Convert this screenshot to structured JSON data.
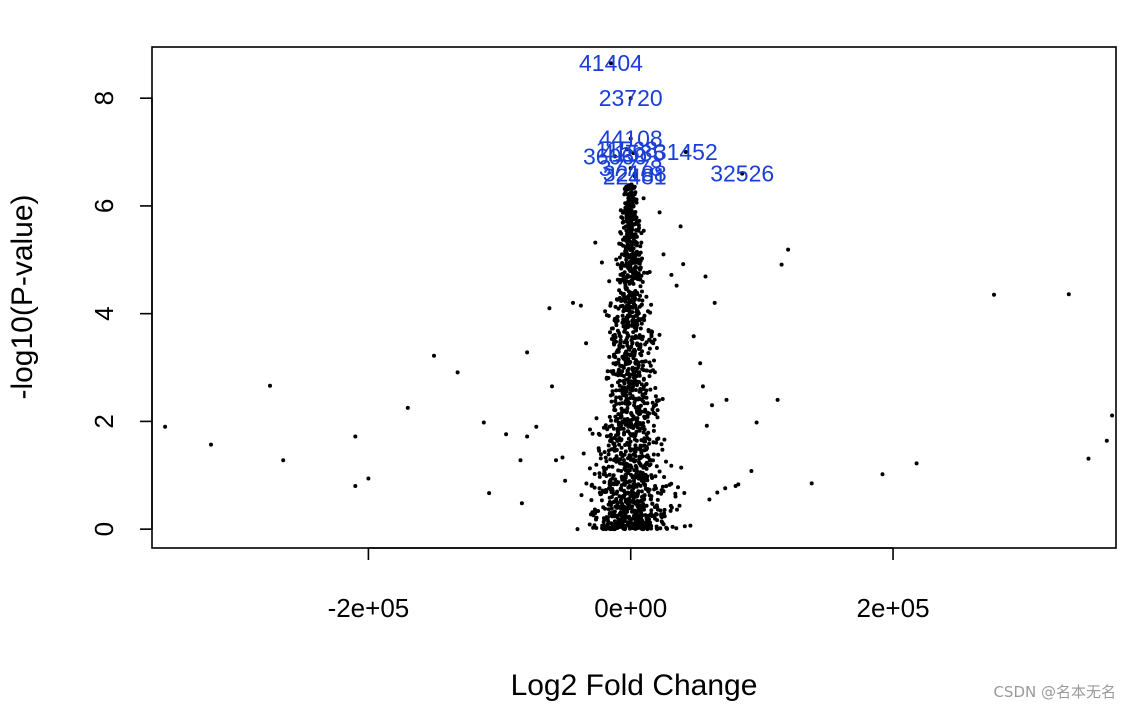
{
  "chart_data": {
    "type": "scatter",
    "title": "",
    "xlabel": "Log2 Fold Change",
    "ylabel": "-log10(P-value)",
    "xlim": [
      -365000,
      370000
    ],
    "ylim": [
      -0.35,
      8.95
    ],
    "x_ticks": [
      -200000,
      0,
      200000
    ],
    "x_tick_labels": [
      "-2e+05",
      "0e+00",
      "2e+05"
    ],
    "y_ticks": [
      0,
      2,
      4,
      6,
      8
    ],
    "y_tick_labels": [
      "0",
      "2",
      "4",
      "6",
      "8"
    ],
    "grid": false,
    "legend": "none",
    "colors": {
      "points": "#000000",
      "labels": "#1a3fd6"
    },
    "labeled_points": [
      {
        "label": "41404",
        "x": -15000,
        "y": 8.65
      },
      {
        "label": "23720",
        "x": 0,
        "y": 8.0
      },
      {
        "label": "44108",
        "x": 0,
        "y": 7.25
      },
      {
        "label": "31452",
        "x": 42000,
        "y": 7.0
      },
      {
        "label": "11568",
        "x": -3000,
        "y": 7.05
      },
      {
        "label": "41585",
        "x": 2000,
        "y": 6.98
      },
      {
        "label": "36060",
        "x": -12000,
        "y": 6.92
      },
      {
        "label": "37778",
        "x": 0,
        "y": 6.7
      },
      {
        "label": "32526",
        "x": 85000,
        "y": 6.6
      },
      {
        "label": "32188",
        "x": 3000,
        "y": 6.6
      },
      {
        "label": "22481",
        "x": 3000,
        "y": 6.55
      }
    ],
    "outlier_points": [
      {
        "x": -355000,
        "y": 1.9
      },
      {
        "x": -320000,
        "y": 1.57
      },
      {
        "x": -275000,
        "y": 2.66
      },
      {
        "x": -265000,
        "y": 1.28
      },
      {
        "x": -210000,
        "y": 1.72
      },
      {
        "x": -210000,
        "y": 0.8
      },
      {
        "x": -200000,
        "y": 0.94
      },
      {
        "x": -170000,
        "y": 2.25
      },
      {
        "x": -150000,
        "y": 3.22
      },
      {
        "x": -132000,
        "y": 2.91
      },
      {
        "x": -112000,
        "y": 1.98
      },
      {
        "x": -108000,
        "y": 0.67
      },
      {
        "x": -95000,
        "y": 1.76
      },
      {
        "x": -84000,
        "y": 1.28
      },
      {
        "x": -83000,
        "y": 0.48
      },
      {
        "x": -79000,
        "y": 1.72
      },
      {
        "x": -79000,
        "y": 3.28
      },
      {
        "x": -72000,
        "y": 1.9
      },
      {
        "x": -62000,
        "y": 4.1
      },
      {
        "x": -60000,
        "y": 2.65
      },
      {
        "x": -57000,
        "y": 1.28
      },
      {
        "x": -52000,
        "y": 1.33
      },
      {
        "x": -50000,
        "y": 0.9
      },
      {
        "x": -44000,
        "y": 4.2
      },
      {
        "x": -38000,
        "y": 4.15
      },
      {
        "x": -34000,
        "y": 3.45
      },
      {
        "x": -27000,
        "y": 5.32
      },
      {
        "x": -22000,
        "y": 4.95
      },
      {
        "x": 22000,
        "y": 5.88
      },
      {
        "x": 25000,
        "y": 5.1
      },
      {
        "x": 31000,
        "y": 4.72
      },
      {
        "x": 35000,
        "y": 4.52
      },
      {
        "x": 38000,
        "y": 5.62
      },
      {
        "x": 40000,
        "y": 4.92
      },
      {
        "x": 48000,
        "y": 3.58
      },
      {
        "x": 53000,
        "y": 3.08
      },
      {
        "x": 55000,
        "y": 2.65
      },
      {
        "x": 57000,
        "y": 4.69
      },
      {
        "x": 58000,
        "y": 1.92
      },
      {
        "x": 60000,
        "y": 0.55
      },
      {
        "x": 62000,
        "y": 2.3
      },
      {
        "x": 64000,
        "y": 4.2
      },
      {
        "x": 66000,
        "y": 0.68
      },
      {
        "x": 72000,
        "y": 0.76
      },
      {
        "x": 73000,
        "y": 2.4
      },
      {
        "x": 80000,
        "y": 0.8
      },
      {
        "x": 82000,
        "y": 0.83
      },
      {
        "x": 92000,
        "y": 1.08
      },
      {
        "x": 96000,
        "y": 1.98
      },
      {
        "x": 112000,
        "y": 2.4
      },
      {
        "x": 115000,
        "y": 4.91
      },
      {
        "x": 120000,
        "y": 5.19
      },
      {
        "x": 138000,
        "y": 0.85
      },
      {
        "x": 192000,
        "y": 1.02
      },
      {
        "x": 218000,
        "y": 1.22
      },
      {
        "x": 277000,
        "y": 4.35
      },
      {
        "x": 334000,
        "y": 4.36
      },
      {
        "x": 349000,
        "y": 1.31
      },
      {
        "x": 363000,
        "y": 1.64
      },
      {
        "x": 367000,
        "y": 2.11
      }
    ],
    "core_cloud": {
      "description_free_note": "",
      "n_points": 1600,
      "x_center": 0,
      "x_spread_at_y0": 42000,
      "x_spread_at_ymax": 6000,
      "y_max": 6.4,
      "seed": 7
    }
  },
  "watermark": "CSDN @名本无名"
}
